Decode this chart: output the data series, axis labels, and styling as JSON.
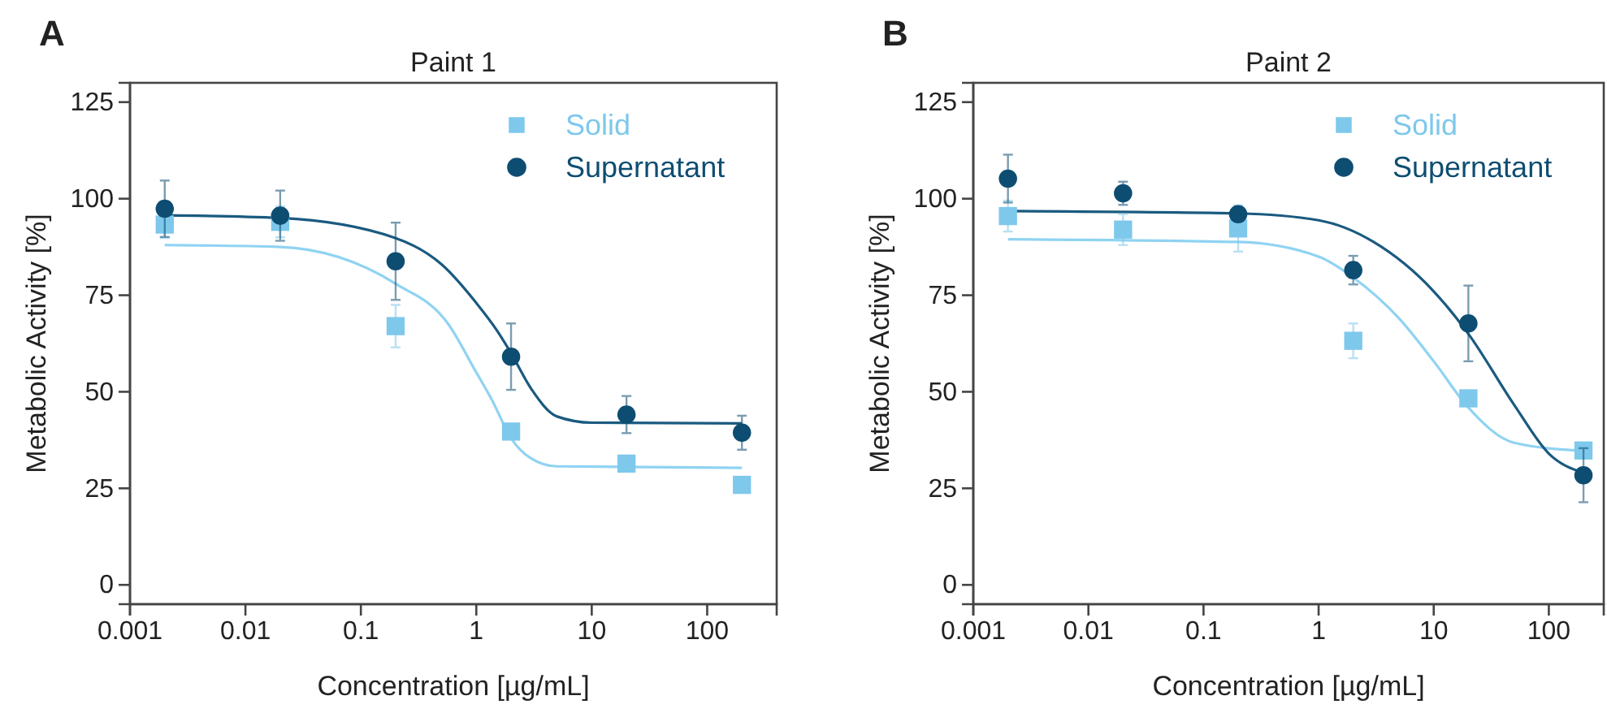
{
  "chart_data": [
    {
      "type": "scatter",
      "title": "Paint 1",
      "xlabel": "Concentration [µg/mL]",
      "ylabel": "Metabolic Activity [%]",
      "annotations": [
        "A"
      ],
      "log": "x",
      "xlim": [
        0.001,
        400
      ],
      "ylim": [
        -5,
        130
      ],
      "xticks": [
        0.001,
        0.01,
        0.1,
        1,
        10,
        100
      ],
      "yticks": [
        0,
        25,
        50,
        75,
        100,
        125
      ],
      "grid": false,
      "legend": "top right",
      "series": [
        {
          "type": "line",
          "color": "#8fd3f2",
          "x": [
            0.002,
            0.02,
            0.2,
            0.57,
            1,
            1.36,
            2,
            2.9,
            5,
            200
          ],
          "values": [
            88,
            87.5,
            78,
            67.6,
            55,
            48,
            38,
            33,
            30.7,
            30.3
          ]
        },
        {
          "type": "line",
          "color": "#1a5a80",
          "x": [
            0.002,
            0.02,
            0.2,
            0.5,
            1,
            1.5,
            2,
            3,
            5,
            10,
            200
          ],
          "values": [
            95.7,
            95,
            89.8,
            83,
            73,
            66,
            60,
            50.7,
            43.6,
            42,
            41.8
          ]
        },
        {
          "name": "Solid",
          "color": "#7ec8ec",
          "marker": "square",
          "x": [
            0.002,
            0.02,
            0.2,
            2,
            20,
            200
          ],
          "values": [
            93.3,
            94,
            67,
            39.7,
            31.4,
            25.9
          ],
          "errors": [
            3.5,
            4,
            5.5,
            1.5,
            1,
            1.5
          ]
        },
        {
          "name": "Supernatant",
          "color": "#0e4d72",
          "marker": "circle",
          "x": [
            0.002,
            0.02,
            0.2,
            2,
            20,
            200
          ],
          "values": [
            97.4,
            95.6,
            83.8,
            59.1,
            44.1,
            39.4
          ],
          "errors": [
            7.3,
            6.5,
            10,
            8.6,
            4.8,
            4.4
          ]
        }
      ]
    },
    {
      "type": "scatter",
      "title": "Paint 2",
      "xlabel": "Concentration [µg/mL]",
      "ylabel": "Metabolic Activity [%]",
      "annotations": [
        "B"
      ],
      "log": "x",
      "xlim": [
        0.001,
        300
      ],
      "ylim": [
        -5,
        130
      ],
      "xticks": [
        0.001,
        0.01,
        0.1,
        1,
        10,
        100
      ],
      "yticks": [
        0,
        25,
        50,
        75,
        100,
        125
      ],
      "grid": false,
      "legend": "top right",
      "series": [
        {
          "type": "line",
          "color": "#8fd3f2",
          "x": [
            0.002,
            0.2,
            1,
            2,
            5,
            10,
            20,
            50,
            200
          ],
          "values": [
            89.5,
            88.8,
            85,
            79.6,
            69,
            57.9,
            45.9,
            36.8,
            34.7
          ]
        },
        {
          "type": "line",
          "color": "#1a5a80",
          "x": [
            0.002,
            0.2,
            1,
            3,
            10,
            20,
            50,
            100,
            200
          ],
          "values": [
            96.8,
            96.2,
            94.4,
            88.8,
            76,
            65,
            46.6,
            34,
            29
          ]
        },
        {
          "name": "Solid",
          "color": "#7ec8ec",
          "marker": "square",
          "x": [
            0.002,
            0.02,
            0.2,
            2,
            20,
            200
          ],
          "values": [
            95.5,
            92,
            92.3,
            63.2,
            48.3,
            34.8
          ],
          "errors": [
            4,
            4,
            6,
            4.5,
            1.5,
            2
          ]
        },
        {
          "name": "Supernatant",
          "color": "#0e4d72",
          "marker": "circle",
          "x": [
            0.002,
            0.02,
            0.2,
            2,
            20,
            200
          ],
          "values": [
            105.2,
            101.4,
            96,
            81.5,
            67.7,
            28.4
          ],
          "errors": [
            6.2,
            3,
            1.5,
            3.7,
            9.8,
            7
          ]
        }
      ]
    }
  ]
}
